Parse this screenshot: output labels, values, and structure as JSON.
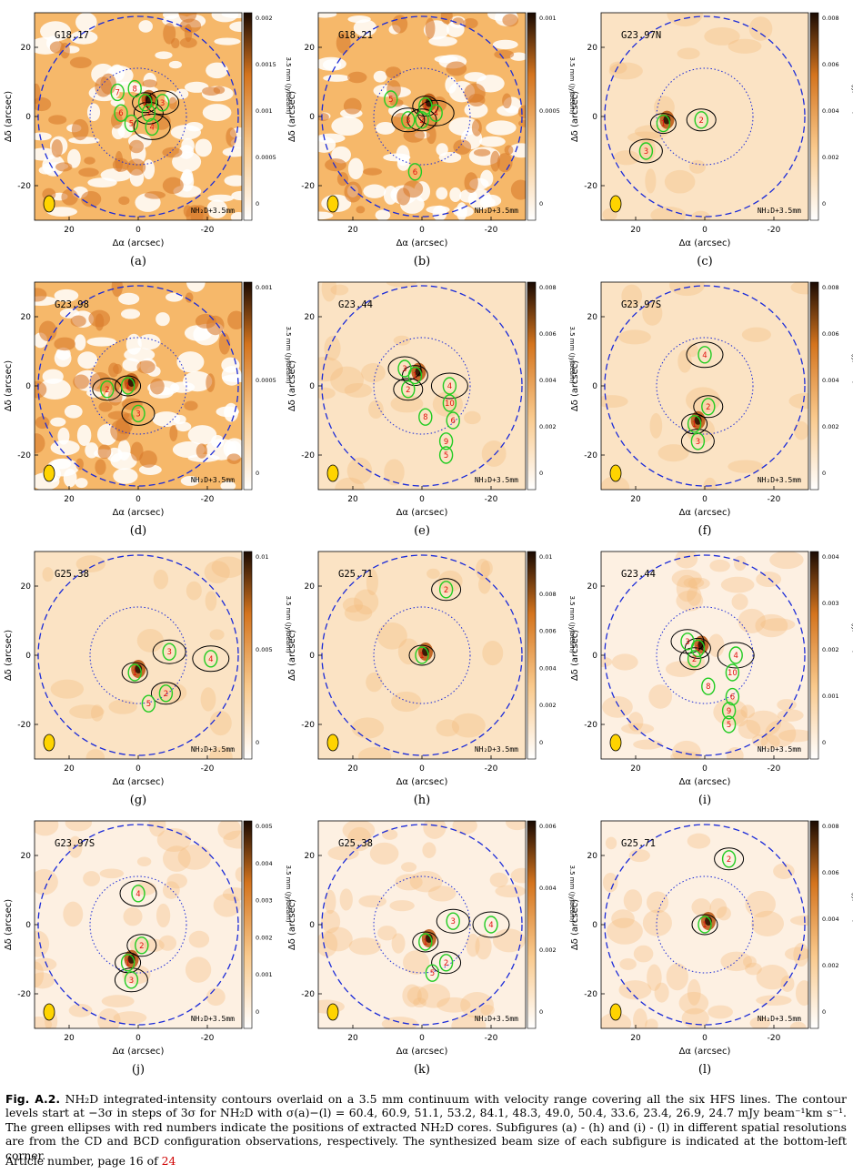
{
  "axis": {
    "xlabel": "Δα (arcsec)",
    "ylabel": "Δδ (arcsec)",
    "cbar_label": "3.5 mm (Jy/beam)",
    "xticks": [
      "20",
      "0",
      "-20"
    ],
    "yticks": [
      "20",
      "0",
      "-20"
    ]
  },
  "overlay_label": "NH₂D+3.5mm",
  "panels": [
    {
      "letter": "(a)",
      "name": "G18.17",
      "cbar": [
        "0.002",
        "0.0015",
        "0.001",
        "0.0005",
        "0"
      ],
      "style": "noise",
      "cores": [
        {
          "n": "1",
          "dx": -2,
          "dy": 4
        },
        {
          "n": "2",
          "dx": -3,
          "dy": 1
        },
        {
          "n": "3",
          "dx": -7,
          "dy": 4
        },
        {
          "n": "4",
          "dx": -4,
          "dy": -3
        },
        {
          "n": "5",
          "dx": 2,
          "dy": -2
        },
        {
          "n": "6",
          "dx": 5,
          "dy": 1
        },
        {
          "n": "7",
          "dx": 6,
          "dy": 7
        },
        {
          "n": "8",
          "dx": 1,
          "dy": 8
        }
      ]
    },
    {
      "letter": "(b)",
      "name": "G18.21",
      "cbar": [
        "0.001",
        "0.0005",
        "0"
      ],
      "style": "noise",
      "cores": [
        {
          "n": "1",
          "dx": -1,
          "dy": 3
        },
        {
          "n": "2",
          "dx": 0,
          "dy": -1
        },
        {
          "n": "3",
          "dx": 4,
          "dy": -1
        },
        {
          "n": "4",
          "dx": -4,
          "dy": 1
        },
        {
          "n": "5",
          "dx": 9,
          "dy": 5
        },
        {
          "n": "6",
          "dx": 2,
          "dy": -16
        }
      ]
    },
    {
      "letter": "(c)",
      "name": "G23.97N",
      "cbar": [
        "0.008",
        "0.006",
        "0.004",
        "0.002",
        "0"
      ],
      "style": "smooth",
      "cores": [
        {
          "n": "1",
          "dx": 12,
          "dy": -2
        },
        {
          "n": "2",
          "dx": 1,
          "dy": -1
        },
        {
          "n": "3",
          "dx": 17,
          "dy": -10
        }
      ]
    },
    {
      "letter": "(d)",
      "name": "G23.98",
      "cbar": [
        "0.001",
        "0.0005",
        "0"
      ],
      "style": "noise",
      "cores": [
        {
          "n": "1",
          "dx": 3,
          "dy": 0
        },
        {
          "n": "2",
          "dx": 9,
          "dy": -1
        },
        {
          "n": "3",
          "dx": 0,
          "dy": -8
        }
      ]
    },
    {
      "letter": "(e)",
      "name": "G23.44",
      "cbar": [
        "0.008",
        "0.006",
        "0.004",
        "0.002",
        "0"
      ],
      "style": "smooth",
      "cores": [
        {
          "n": "1",
          "dx": 2,
          "dy": 3
        },
        {
          "n": "2",
          "dx": 4,
          "dy": -1
        },
        {
          "n": "3",
          "dx": 5,
          "dy": 5
        },
        {
          "n": "4",
          "dx": -8,
          "dy": 0
        },
        {
          "n": "5",
          "dx": -7,
          "dy": -20
        },
        {
          "n": "6",
          "dx": -9,
          "dy": -10
        },
        {
          "n": "8",
          "dx": -1,
          "dy": -9
        },
        {
          "n": "9",
          "dx": -7,
          "dy": -16
        },
        {
          "n": "10",
          "dx": -8,
          "dy": -5
        }
      ]
    },
    {
      "letter": "(f)",
      "name": "G23.97S",
      "cbar": [
        "0.008",
        "0.006",
        "0.004",
        "0.002",
        "0"
      ],
      "style": "smooth",
      "cores": [
        {
          "n": "1",
          "dx": 3,
          "dy": -11
        },
        {
          "n": "2",
          "dx": -1,
          "dy": -6
        },
        {
          "n": "3",
          "dx": 2,
          "dy": -16
        },
        {
          "n": "4",
          "dx": 0,
          "dy": 9
        }
      ]
    },
    {
      "letter": "(g)",
      "name": "G25.38",
      "cbar": [
        "0.01",
        "0.005",
        "0"
      ],
      "style": "smooth",
      "cores": [
        {
          "n": "1",
          "dx": 1,
          "dy": -5
        },
        {
          "n": "2",
          "dx": -8,
          "dy": -11
        },
        {
          "n": "3",
          "dx": -9,
          "dy": 1
        },
        {
          "n": "4",
          "dx": -21,
          "dy": -1
        },
        {
          "n": "5",
          "dx": -3,
          "dy": -14
        }
      ]
    },
    {
      "letter": "(h)",
      "name": "G25.71",
      "cbar": [
        "0.01",
        "0.008",
        "0.006",
        "0.004",
        "0.002",
        "0"
      ],
      "style": "smooth",
      "cores": [
        {
          "n": "1",
          "dx": 0,
          "dy": 0
        },
        {
          "n": "2",
          "dx": -7,
          "dy": 19
        }
      ]
    },
    {
      "letter": "(i)",
      "name": "G23.44",
      "cbar": [
        "0.004",
        "0.003",
        "0.002",
        "0.001",
        "0"
      ],
      "style": "fine",
      "cores": [
        {
          "n": "1",
          "dx": 2,
          "dy": 2
        },
        {
          "n": "2",
          "dx": 3,
          "dy": -1
        },
        {
          "n": "3",
          "dx": 5,
          "dy": 4
        },
        {
          "n": "4",
          "dx": -9,
          "dy": 0
        },
        {
          "n": "5",
          "dx": -7,
          "dy": -20
        },
        {
          "n": "6",
          "dx": -8,
          "dy": -12
        },
        {
          "n": "8",
          "dx": -1,
          "dy": -9
        },
        {
          "n": "9",
          "dx": -7,
          "dy": -16
        },
        {
          "n": "10",
          "dx": -8,
          "dy": -5
        }
      ]
    },
    {
      "letter": "(j)",
      "name": "G23.97S",
      "cbar": [
        "0.005",
        "0.004",
        "0.003",
        "0.002",
        "0.001",
        "0"
      ],
      "style": "fine",
      "cores": [
        {
          "n": "1",
          "dx": 3,
          "dy": -11
        },
        {
          "n": "2",
          "dx": -1,
          "dy": -6
        },
        {
          "n": "3",
          "dx": 2,
          "dy": -16
        },
        {
          "n": "4",
          "dx": 0,
          "dy": 9
        }
      ]
    },
    {
      "letter": "(k)",
      "name": "G25.38",
      "cbar": [
        "0.006",
        "0.004",
        "0.002",
        "0"
      ],
      "style": "fine",
      "cores": [
        {
          "n": "1",
          "dx": -1,
          "dy": -5
        },
        {
          "n": "2",
          "dx": -7,
          "dy": -11
        },
        {
          "n": "3",
          "dx": -9,
          "dy": 1
        },
        {
          "n": "4",
          "dx": -20,
          "dy": 0
        },
        {
          "n": "5",
          "dx": -3,
          "dy": -14
        }
      ]
    },
    {
      "letter": "(l)",
      "name": "G25.71",
      "cbar": [
        "0.008",
        "0.006",
        "0.004",
        "0.002",
        "0"
      ],
      "style": "fine",
      "cores": [
        {
          "n": "1",
          "dx": 0,
          "dy": 0
        },
        {
          "n": "2",
          "dx": -7,
          "dy": 19
        }
      ]
    }
  ],
  "caption": {
    "fig": "Fig. A.2.",
    "text": "NH₂D integrated-intensity contours overlaid on a 3.5 mm continuum with velocity range covering all the six HFS lines. The contour levels start at −3σ in steps of 3σ for NH₂D with σ(a)−(l) = 60.4, 60.9, 51.1, 53.2, 84.1, 48.3, 49.0, 50.4, 33.6, 23.4, 26.9, 24.7 mJy beam⁻¹km s⁻¹. The green ellipses with red numbers indicate the positions of extracted NH₂D cores. Subfigures (a) - (h) and (i) - (l) in different spatial resolutions are from the CD and BCD configuration observations, respectively. The synthesized beam size of each subfigure is indicated at the bottom-left corner."
  },
  "footer": {
    "prefix": "Article number, page 16 of ",
    "pages": "24"
  },
  "colors": {
    "circle": "#1a2ad8",
    "core": "#22cc22",
    "core_num": "#e01010",
    "contour": "#000000"
  }
}
